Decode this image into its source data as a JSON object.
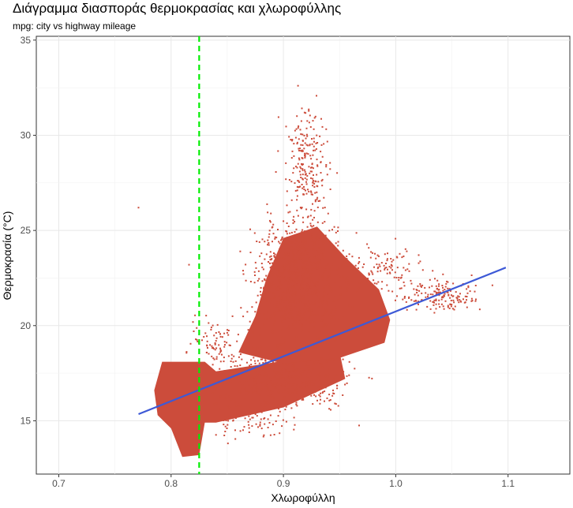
{
  "chart_data": {
    "type": "scatter",
    "title": "Διάγραμμα διασποράς θερμοκρασίας και χλωροφύλλης",
    "subtitle": "mpg: city vs highway mileage",
    "xlabel": "Χλωροφύλλη",
    "ylabel": "Θερμοκρασία (°C)",
    "xlim": [
      0.68,
      1.155
    ],
    "ylim": [
      12.2,
      35.2
    ],
    "x_ticks": [
      0.7,
      0.8,
      0.9,
      1.0,
      1.1
    ],
    "x_tick_labels": [
      "0.7",
      "0.8",
      "0.9",
      "1.0",
      "1.1"
    ],
    "y_ticks": [
      15,
      20,
      25,
      30,
      35
    ],
    "y_tick_labels": [
      "15",
      "20",
      "25",
      "30",
      "35"
    ],
    "grid": true,
    "series": [
      {
        "kind": "points",
        "color": "#cc4c3b",
        "approx_point_count": "dense cloud",
        "clusters": [
          {
            "x_range": [
              0.79,
              0.83
            ],
            "y_range": [
              13.2,
              18.2
            ],
            "shape": "dense block"
          },
          {
            "x_range": [
              0.83,
              0.96
            ],
            "y_range": [
              14.5,
              19.5
            ],
            "shape": "dense band"
          },
          {
            "x_range": [
              0.86,
              1.0
            ],
            "y_range": [
              17.0,
              26.5
            ],
            "shape": "main cloud"
          },
          {
            "x_range": [
              0.88,
              0.96
            ],
            "y_range": [
              25.0,
              33.8
            ],
            "shape": "upper plume"
          },
          {
            "x_range": [
              0.98,
              1.1
            ],
            "y_range": [
              20.0,
              23.5
            ],
            "shape": "right tail"
          }
        ],
        "outliers": [
          {
            "x": 0.771,
            "y": 26.2
          },
          {
            "x": 0.816,
            "y": 23.2
          }
        ]
      },
      {
        "kind": "regression_line",
        "color": "#3d59d6",
        "x": [
          0.771,
          1.098
        ],
        "y": [
          15.35,
          23.05
        ]
      },
      {
        "kind": "vertical_line",
        "style": "dashed",
        "color": "#00ee00",
        "x": 0.825
      }
    ]
  }
}
